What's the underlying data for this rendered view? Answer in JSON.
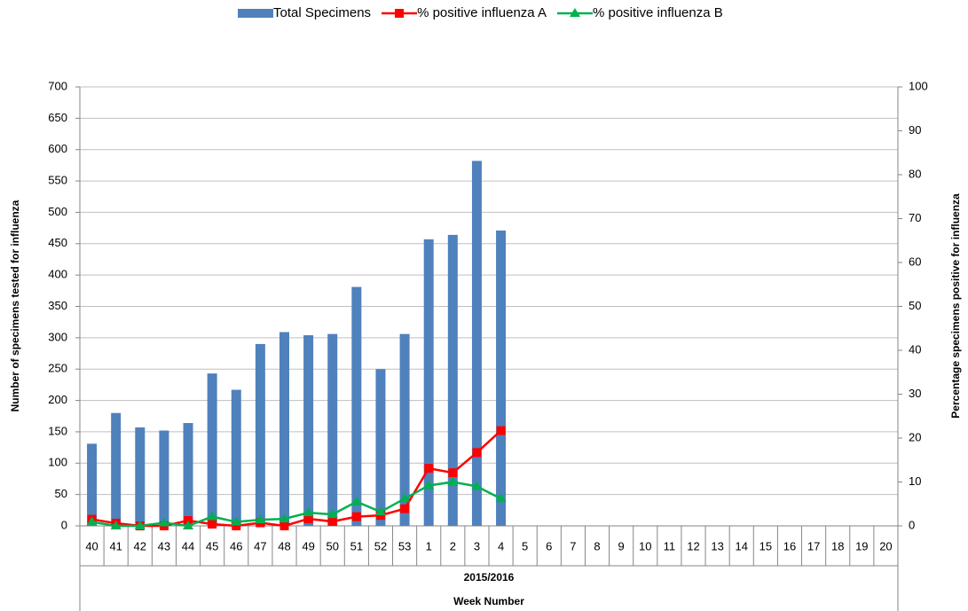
{
  "chart_data": {
    "type": "bar_line",
    "categories": [
      "40",
      "41",
      "42",
      "43",
      "44",
      "45",
      "46",
      "47",
      "48",
      "49",
      "50",
      "51",
      "52",
      "53",
      "1",
      "2",
      "3",
      "4",
      "5",
      "6",
      "7",
      "8",
      "9",
      "10",
      "11",
      "12",
      "13",
      "14",
      "15",
      "16",
      "17",
      "18",
      "19",
      "20"
    ],
    "x_group_label": "2015/2016",
    "x_label": "Week Number",
    "y_label": "Number of specimens tested for influenza",
    "y2_label": "Percentage specimens positive for influenza",
    "series": [
      {
        "name": "Total Specimens",
        "type": "bar",
        "color": "#4f81bd",
        "values": [
          131,
          180,
          157,
          152,
          164,
          243,
          217,
          290,
          309,
          304,
          306,
          381,
          250,
          306,
          457,
          464,
          582,
          471,
          null,
          null,
          null,
          null,
          null,
          null,
          null,
          null,
          null,
          null,
          null,
          null,
          null,
          null,
          null,
          null
        ]
      },
      {
        "name": "% positive influenza A",
        "type": "line",
        "marker": "square",
        "color": "#ff0000",
        "axis": "y2",
        "values": [
          1.5,
          0.6,
          0.0,
          0.0,
          1.2,
          0.4,
          0.0,
          0.7,
          0.0,
          1.6,
          1.0,
          2.1,
          2.4,
          3.9,
          13.1,
          12.1,
          16.7,
          21.7,
          null,
          null,
          null,
          null,
          null,
          null,
          null,
          null,
          null,
          null,
          null,
          null,
          null,
          null,
          null,
          null
        ]
      },
      {
        "name": "% positive influenza B",
        "type": "line",
        "marker": "triangle",
        "color": "#00b050",
        "axis": "y2",
        "values": [
          0.9,
          0.0,
          0.0,
          0.7,
          0.0,
          2.1,
          0.9,
          1.4,
          1.6,
          3.0,
          2.6,
          5.5,
          3.2,
          6.2,
          9.2,
          10.0,
          9.0,
          6.2,
          null,
          null,
          null,
          null,
          null,
          null,
          null,
          null,
          null,
          null,
          null,
          null,
          null,
          null,
          null,
          null
        ]
      }
    ],
    "ylim": [
      0,
      700
    ],
    "yticks": [
      0,
      50,
      100,
      150,
      200,
      250,
      300,
      350,
      400,
      450,
      500,
      550,
      600,
      650,
      700
    ],
    "y2lim": [
      0,
      100
    ],
    "y2ticks": [
      0,
      10,
      20,
      30,
      40,
      50,
      60,
      70,
      80,
      90,
      100
    ],
    "grid": true,
    "legend": "top"
  }
}
